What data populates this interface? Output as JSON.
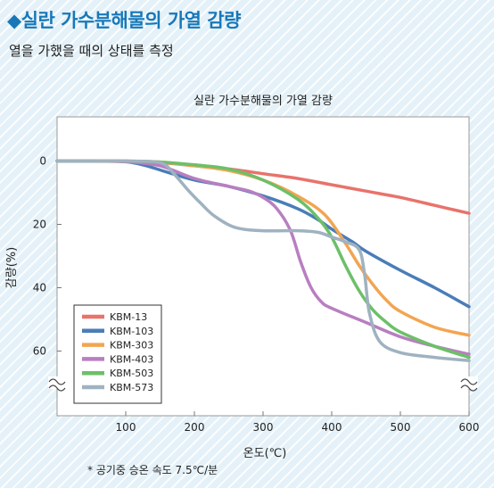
{
  "header": {
    "title": "◆실란 가수분해물의 가열 감량",
    "subtitle": "열을 가했을 때의 상태를 측정"
  },
  "footnote": "* 공기중 승온 속도 7.5℃/분",
  "colors": {
    "title": "#1778b8",
    "background": "#e4f1f8"
  },
  "chart_data": {
    "type": "line",
    "title": "실란 가수분해물의 가열 감량",
    "xlabel": "온도(℃)",
    "ylabel": "감량(%)",
    "xlim": [
      0,
      600
    ],
    "ylim": [
      0,
      70
    ],
    "y_inverted": true,
    "axis_breaks": "y-axis broken above 70",
    "xticks": [
      100,
      200,
      300,
      400,
      500,
      600
    ],
    "yticks": [
      0,
      20,
      40,
      60
    ],
    "grid": false,
    "legend_position": "bottom-left",
    "series": [
      {
        "name": "KBM-13",
        "color": "#e8736c",
        "x": [
          0,
          50,
          100,
          150,
          200,
          250,
          300,
          350,
          400,
          450,
          500,
          550,
          600
        ],
        "y": [
          0,
          0,
          0.2,
          0.5,
          1.5,
          2.5,
          4,
          5.5,
          7.5,
          9.5,
          11.5,
          14,
          16.5
        ]
      },
      {
        "name": "KBM-103",
        "color": "#4a7db8",
        "x": [
          0,
          50,
          100,
          130,
          160,
          200,
          250,
          300,
          350,
          380,
          400,
          430,
          450,
          500,
          550,
          600
        ],
        "y": [
          0,
          0,
          0.2,
          1.5,
          3.5,
          6,
          8,
          11,
          15,
          18.5,
          21.5,
          25.5,
          28.5,
          34.5,
          40,
          46
        ]
      },
      {
        "name": "KBM-303",
        "color": "#f2a552",
        "x": [
          0,
          50,
          100,
          150,
          200,
          250,
          300,
          350,
          390,
          420,
          440,
          460,
          480,
          500,
          550,
          600
        ],
        "y": [
          0,
          0,
          0,
          0.3,
          1.5,
          3,
          6,
          11,
          17,
          26,
          33,
          39,
          44,
          47.5,
          52.5,
          55
        ]
      },
      {
        "name": "KBM-403",
        "color": "#b87fc0",
        "x": [
          0,
          50,
          100,
          150,
          200,
          250,
          280,
          300,
          320,
          340,
          355,
          370,
          385,
          400,
          450,
          500,
          550,
          600
        ],
        "y": [
          0,
          0,
          0.2,
          1.5,
          5.5,
          8,
          9.5,
          11.5,
          15,
          22,
          32,
          40,
          44.5,
          46.5,
          51,
          55.5,
          58.5,
          61
        ]
      },
      {
        "name": "KBM-503",
        "color": "#6cc068",
        "x": [
          0,
          50,
          100,
          150,
          200,
          250,
          300,
          350,
          380,
          400,
          420,
          440,
          460,
          480,
          500,
          550,
          600
        ],
        "y": [
          0,
          0,
          0,
          0.3,
          1.2,
          2.5,
          6,
          12,
          18,
          24,
          33,
          41,
          47,
          51,
          54,
          58.5,
          62
        ]
      },
      {
        "name": "KBM-573",
        "color": "#9fb2c0",
        "x": [
          0,
          50,
          100,
          150,
          170,
          190,
          210,
          230,
          260,
          300,
          350,
          380,
          400,
          420,
          440,
          448,
          455,
          470,
          500,
          550,
          600
        ],
        "y": [
          0,
          0,
          0,
          0.5,
          4,
          9,
          13.5,
          17.5,
          21,
          22,
          22,
          22.5,
          24,
          25.5,
          28,
          36,
          48,
          57,
          60.5,
          62,
          63
        ]
      }
    ]
  }
}
